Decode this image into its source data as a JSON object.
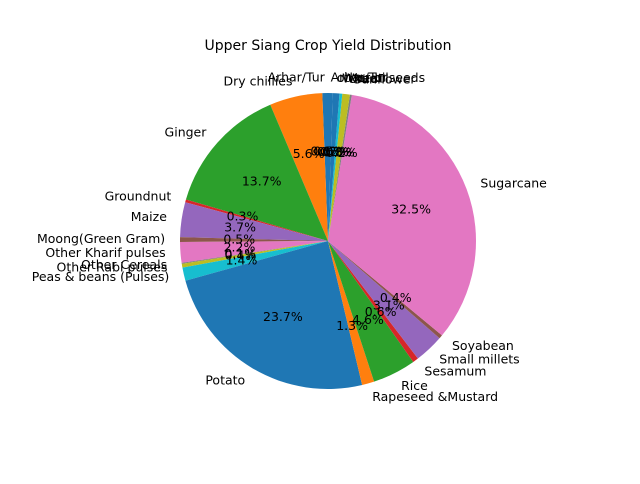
{
  "chart_data": {
    "type": "pie",
    "title": "Upper Siang Crop Yield Distribution",
    "start_angle_deg": 90,
    "direction": "counterclockwise",
    "slices": [
      {
        "label": "Arhar/Tur",
        "value": 0.6,
        "pct_text": "0.6%",
        "color": "#1f77b4"
      },
      {
        "label": "Dry chillies",
        "value": 5.6,
        "pct_text": "5.6%",
        "color": "#ff7f0e"
      },
      {
        "label": "Ginger",
        "value": 13.7,
        "pct_text": "13.7%",
        "color": "#2ca02c"
      },
      {
        "label": "Groundnut",
        "value": 0.3,
        "pct_text": "0.3%",
        "color": "#d62728"
      },
      {
        "label": "Maize",
        "value": 3.7,
        "pct_text": "3.7%",
        "color": "#9467bd"
      },
      {
        "label": "Moong(Green Gram)",
        "value": 0.5,
        "pct_text": "0.5%",
        "color": "#8c564b"
      },
      {
        "label": "Other Kharif pulses",
        "value": 2.2,
        "pct_text": "2.2%",
        "color": "#e377c2"
      },
      {
        "label": "Other Cereals",
        "value": 0.1,
        "pct_text": "0.1%",
        "color": "#7f7f7f"
      },
      {
        "label": "Other Rabi pulses",
        "value": 0.4,
        "pct_text": "0.4%",
        "color": "#bcbd22"
      },
      {
        "label": "Peas & beans (Pulses)",
        "value": 1.4,
        "pct_text": "1.4%",
        "color": "#17becf"
      },
      {
        "label": "Potato",
        "value": 23.7,
        "pct_text": "23.7%",
        "color": "#1f77b4"
      },
      {
        "label": "Rapeseed &Mustard",
        "value": 1.3,
        "pct_text": "1.3%",
        "color": "#ff7f0e"
      },
      {
        "label": "Rice",
        "value": 4.6,
        "pct_text": "4.6%",
        "color": "#2ca02c"
      },
      {
        "label": "Sesamum",
        "value": 0.6,
        "pct_text": "0.6%",
        "color": "#d62728"
      },
      {
        "label": "Small millets",
        "value": 3.1,
        "pct_text": "3.1%",
        "color": "#9467bd"
      },
      {
        "label": "Soyabean",
        "value": 0.4,
        "pct_text": "0.4%",
        "color": "#8c564b"
      },
      {
        "label": "Sugarcane",
        "value": 32.5,
        "pct_text": "32.5%",
        "color": "#e377c2"
      },
      {
        "label": "Sunflower",
        "value": 0.2,
        "pct_text": "0.2%",
        "color": "#7f7f7f"
      },
      {
        "label": "Urad",
        "value": 0.8,
        "pct_text": "0.8%",
        "color": "#bcbd22"
      },
      {
        "label": "Wheat",
        "value": 0.3,
        "pct_text": "0.3%",
        "color": "#17becf"
      },
      {
        "label": "other oilseeds",
        "value": 0.7,
        "pct_text": "0.7%",
        "color": "#1f77b4"
      },
      {
        "label": "Arhar/Tur",
        "value": 0.5,
        "pct_text": "0.5%",
        "color": "#1f77b4"
      }
    ]
  }
}
